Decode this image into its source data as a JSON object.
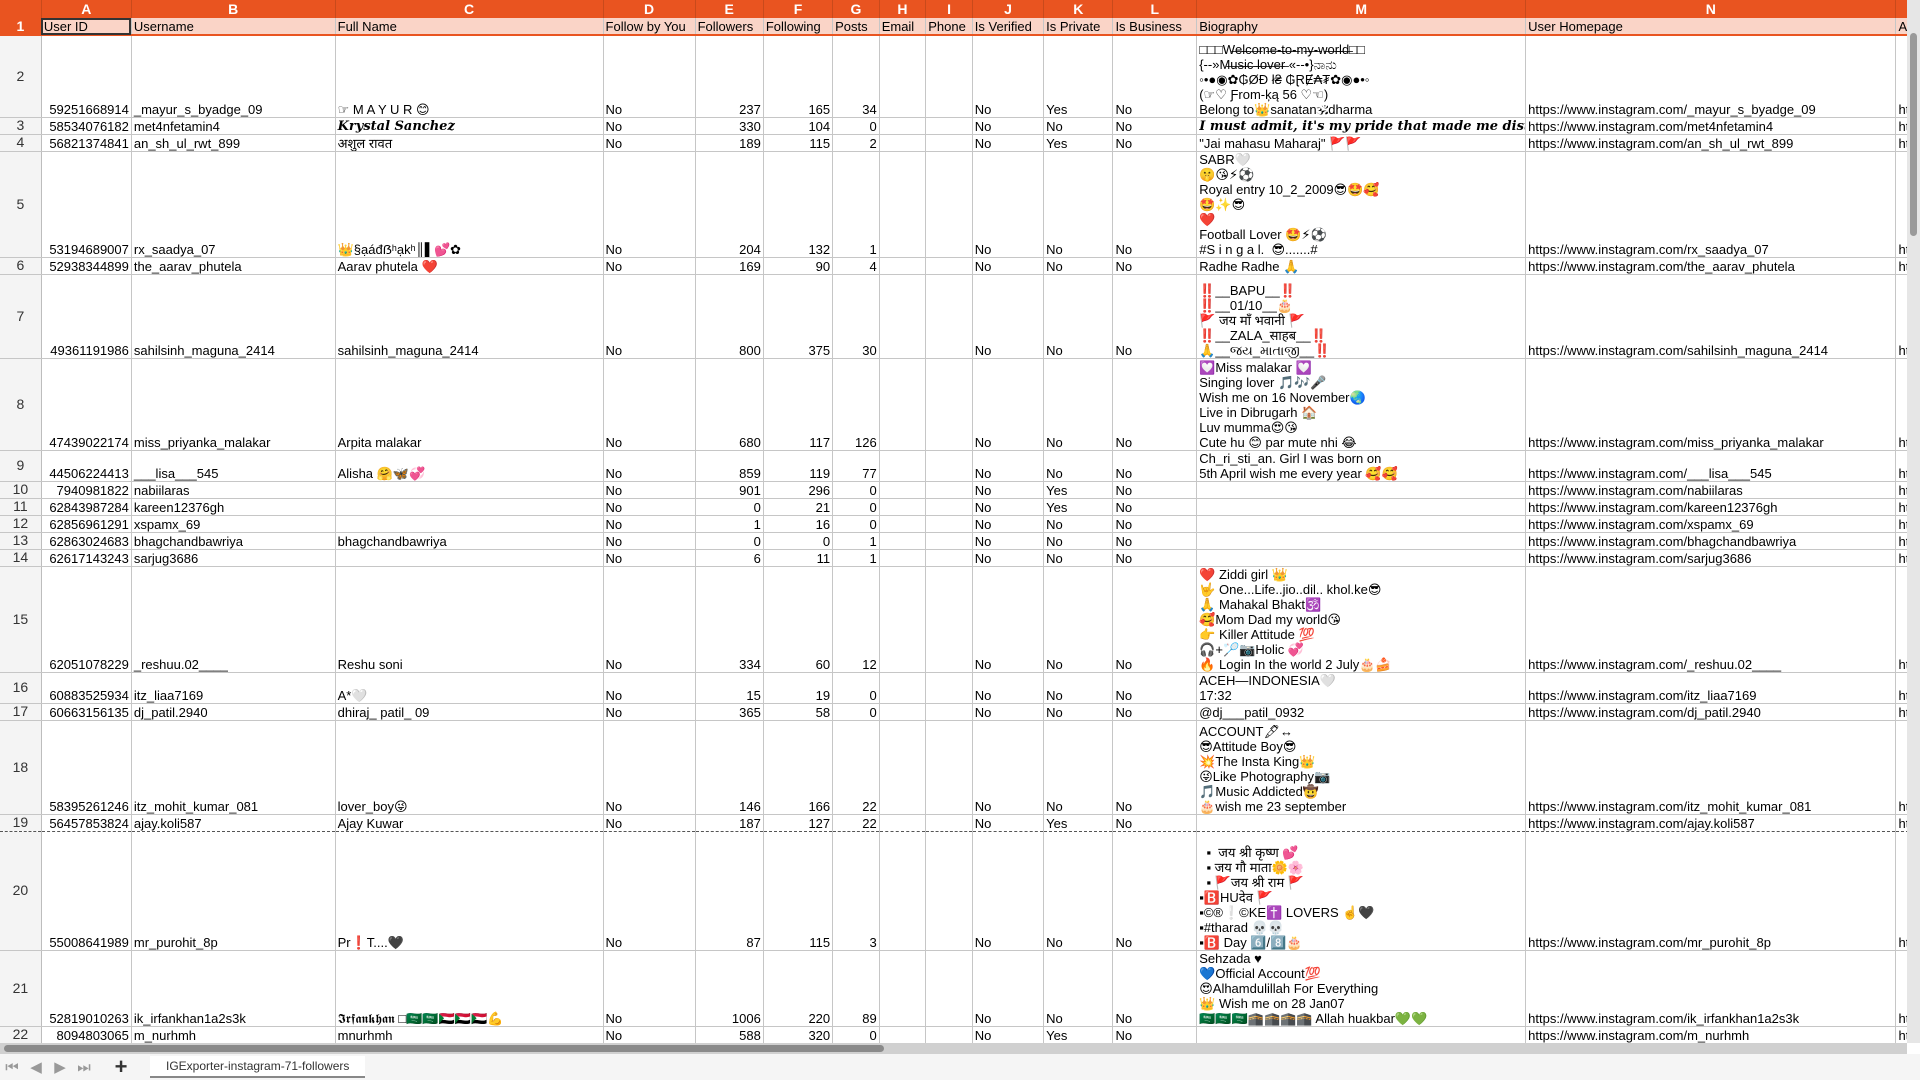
{
  "colors": {
    "accent": "#e95420",
    "header_fill": "#fad4c7"
  },
  "column_letters": [
    "A",
    "B",
    "C",
    "D",
    "E",
    "F",
    "G",
    "H",
    "I",
    "J",
    "K",
    "L",
    "M",
    "N",
    ""
  ],
  "header_row_number": "1",
  "headers": [
    "User ID",
    "Username",
    "Full Name",
    "Follow by You",
    "Followers",
    "Following",
    "Posts",
    "Email",
    "Phone",
    "Is Verified",
    "Is Private",
    "Is Business",
    "Biography",
    "User Homepage",
    "Avatar URL"
  ],
  "rows": [
    {
      "n": "2",
      "cells": [
        "59251668914",
        "_mayur_s_byadge_09",
        "☞ M A Y U R 😊",
        "No",
        "237",
        "165",
        "34",
        "",
        "",
        "No",
        "Yes",
        "No",
        "□□□W̶e̶l̶c̶o̶m̶e̶-̶t̶o̶-̶m̶y̶-̶w̶o̶r̶l̶d̶□□\n{--»M̶u̶s̶i̶c̶ ̶l̶o̶v̶e̶r̶ «--•}ನಾನು\n◦•●◉✿₲ØĐ ł₴ ₲ⱤɆ₳₮✿◉●•◦\n(☞♡ Ƒrom-ķą 56 ♡☜)\nBelong to👑sanatan🕉dharma",
        "https://www.instagram.com/_mayur_s_byadge_09",
        "https://scont"
      ]
    },
    {
      "n": "3",
      "cells": [
        "58534076182",
        "met4nfetamin4",
        "Krystal Sanchez",
        "No",
        "330",
        "104",
        "0",
        "",
        "",
        "No",
        "No",
        "No",
        "I must admit, it's my pride that made me distant.",
        "https://www.instagram.com/met4nfetamin4",
        "https://scont"
      ]
    },
    {
      "n": "4",
      "cells": [
        "56821374841",
        "an_sh_ul_rwt_899",
        "अशुल रावत",
        "No",
        "189",
        "115",
        "2",
        "",
        "",
        "No",
        "Yes",
        "No",
        "\"Jai mahasu Maharaj\" 🚩🚩",
        "https://www.instagram.com/an_sh_ul_rwt_899",
        "https://scont"
      ]
    },
    {
      "n": "5",
      "cells": [
        "53194689007",
        "rx_saadya_07",
        "👑§ạáđẞʰạ̩kʰ║▌💕✿",
        "No",
        "204",
        "132",
        "1",
        "",
        "",
        "No",
        "No",
        "No",
        "SABR🤍\n🤫😘⚡⚽\nRoyal entry 10_2_2009😎🤩🥰\n🤩✨😎\n❤️\nFootball Lover 🤩⚡⚽\n#S i n g a l.  😎.......#",
        "https://www.instagram.com/rx_saadya_07",
        "https://scont"
      ]
    },
    {
      "n": "6",
      "cells": [
        "52938344899",
        "the_aarav_phutela",
        "Aarav phutela ❤️",
        "No",
        "169",
        "90",
        "4",
        "",
        "",
        "No",
        "No",
        "No",
        "Radhe Radhe 🙏",
        "https://www.instagram.com/the_aarav_phutela",
        "https://scont"
      ]
    },
    {
      "n": "7",
      "cells": [
        "49361191986",
        "sahilsinh_maguna_2414",
        "sahilsinh_maguna_2414",
        "No",
        "800",
        "375",
        "30",
        "",
        "",
        "No",
        "No",
        "No",
        "‼️__BAPU__‼️\n‼️__01/10__🎂\n🚩 जय माँ भवानी 🚩\n‼️__ZALA_साहब__‼️\n🙏__જય_માતાજી__‼️",
        "https://www.instagram.com/sahilsinh_maguna_2414",
        "https://scont"
      ]
    },
    {
      "n": "8",
      "cells": [
        "47439022174",
        "miss_priyanka_malakar",
        "Arpita malakar",
        "No",
        "680",
        "117",
        "126",
        "",
        "",
        "No",
        "No",
        "No",
        "💟Miss malakar 💟\nSinging lover 🎵🎶🎤\nWish me on 16 November🌏\nLive in Dibrugarh 🏠\nLuv mumma😍😘\nCute hu 😊 par mute nhi 😂",
        "https://www.instagram.com/miss_priyanka_malakar",
        "https://scont"
      ]
    },
    {
      "n": "9",
      "cells": [
        "44506224413",
        "___lisa___545",
        "Alisha 🤗🦋💞",
        "No",
        "859",
        "119",
        "77",
        "",
        "",
        "No",
        "No",
        "No",
        "Ch_ri_sti_an. Girl I was born on\n5th April wish me every year 🥰🥰",
        "https://www.instagram.com/___lisa___545",
        "https://scont"
      ]
    },
    {
      "n": "10",
      "cells": [
        "7940981822",
        "nabiilaras",
        "",
        "No",
        "901",
        "296",
        "0",
        "",
        "",
        "No",
        "Yes",
        "No",
        "",
        "https://www.instagram.com/nabiilaras",
        "https://instag"
      ]
    },
    {
      "n": "11",
      "cells": [
        "62843987284",
        "kareen12376gh",
        "",
        "No",
        "0",
        "21",
        "0",
        "",
        "",
        "No",
        "Yes",
        "No",
        "",
        "https://www.instagram.com/kareen12376gh",
        "https://instag"
      ]
    },
    {
      "n": "12",
      "cells": [
        "62856961291",
        "xspamx_69",
        "",
        "No",
        "1",
        "16",
        "0",
        "",
        "",
        "No",
        "No",
        "No",
        "",
        "https://www.instagram.com/xspamx_69",
        "https://instag"
      ]
    },
    {
      "n": "13",
      "cells": [
        "62863024683",
        "bhagchandbawriya",
        "bhagchandbawriya",
        "No",
        "0",
        "0",
        "1",
        "",
        "",
        "No",
        "No",
        "No",
        "",
        "https://www.instagram.com/bhagchandbawriya",
        "https://scont"
      ]
    },
    {
      "n": "14",
      "cells": [
        "62617143243",
        "sarjug3686",
        "",
        "No",
        "6",
        "11",
        "1",
        "",
        "",
        "No",
        "No",
        "No",
        "",
        "https://www.instagram.com/sarjug3686",
        "https://scont"
      ]
    },
    {
      "n": "15",
      "cells": [
        "62051078229",
        "_reshuu.02____",
        "Reshu soni",
        "No",
        "334",
        "60",
        "12",
        "",
        "",
        "No",
        "No",
        "No",
        "❤️ Ziddi girl 👑\n🤟 One...Life..jio..dil.. khol.ke😎\n🙏 Mahakal Bhakt🕉️\n🥰Mom Dad my world😘\n👉 Killer Attitude 💯\n🎧+🏸📷Holic 💞\n🔥 Login In the world 2 July🎂🍰",
        "https://www.instagram.com/_reshuu.02____",
        "https://scont"
      ]
    },
    {
      "n": "16",
      "cells": [
        "60883525934",
        "itz_liaa7169",
        "A*🤍",
        "No",
        "15",
        "19",
        "0",
        "",
        "",
        "No",
        "No",
        "No",
        "ACEH—INDONESIA🤍\n17:32",
        "https://www.instagram.com/itz_liaa7169",
        "https://scont"
      ]
    },
    {
      "n": "17",
      "cells": [
        "60663156135",
        "dj_patil.2940",
        "dhiraj_ patil_ 09",
        "No",
        "365",
        "58",
        "0",
        "",
        "",
        "No",
        "No",
        "No",
        "@dj___patil_0932",
        "https://www.instagram.com/dj_patil.2940",
        "https://scont"
      ]
    },
    {
      "n": "18",
      "cells": [
        "58395261246",
        "itz_mohit_kumar_081",
        "lover_boy😜",
        "No",
        "146",
        "166",
        "22",
        "",
        "",
        "No",
        "No",
        "No",
        "ACCOUNT🖋↔\n😎Attitude Boy😎\n💥The Insta King👑\n😜Like Photography📷\n🎵Music Addicted🤠\n🎂wish me 23 september",
        "https://www.instagram.com/itz_mohit_kumar_081",
        "https://scont"
      ]
    },
    {
      "n": "19",
      "cells": [
        "56457853824",
        "ajay.koli587",
        "Ajay Kuwar",
        "No",
        "187",
        "127",
        "22",
        "",
        "",
        "No",
        "Yes",
        "No",
        "",
        "https://www.instagram.com/ajay.koli587",
        "https://scont"
      ]
    },
    {
      "n": "20",
      "cells": [
        "55008641989",
        "mr_purohit_8p",
        "Pr❗T....🖤",
        "No",
        "87",
        "115",
        "3",
        "",
        "",
        "No",
        "No",
        "No",
        "  ▪  जय श्री कृष्ण 💕\n  ▪ जय गौ माता🌼🌸\n  ▪ 🚩जय श्री राम 🚩\n▪🅱️HUदेव 🚩\n▪©®❕©KE✝️ LOVERS ☝️🖤\n▪#tharad 💀💀\n▪🅱️ Day 6️⃣/8️⃣🎂",
        "https://www.instagram.com/mr_purohit_8p",
        "https://instag"
      ]
    },
    {
      "n": "21",
      "cells": [
        "52819010263",
        "ik_irfankhan1a2s3k",
        "𝕴𝖗𝖋𝖆𝖓𝖐𝖍𝖆𝖓 □🇸🇦🇸🇦🇸🇩🇸🇩🇸🇩💪",
        "No",
        "1006",
        "220",
        "89",
        "",
        "",
        "No",
        "No",
        "No",
        "Sehzada ♥\n💙Official Account💯\n😍Alhamdulillah For Everything\n👑 Wish me on 28 Jan07\n🇸🇦🇸🇦🇸🇦🕋🕋🕋🕋 Allah huakbar💚💚",
        "https://www.instagram.com/ik_irfankhan1a2s3k",
        "https://scont"
      ]
    },
    {
      "n": "22",
      "cells": [
        "8094803065",
        "m_nurhmh",
        "mnurhmh",
        "No",
        "588",
        "320",
        "0",
        "",
        "",
        "No",
        "Yes",
        "No",
        "",
        "https://www.instagram.com/m_nurhmh",
        "https://scont"
      ]
    }
  ],
  "sheet_tabs": [
    {
      "label": "IGExporter-instagram-71-followers",
      "active": true
    }
  ],
  "nav_icons": [
    "first-sheet-icon",
    "prev-sheet-icon",
    "next-sheet-icon",
    "last-sheet-icon",
    "add-sheet-icon"
  ]
}
